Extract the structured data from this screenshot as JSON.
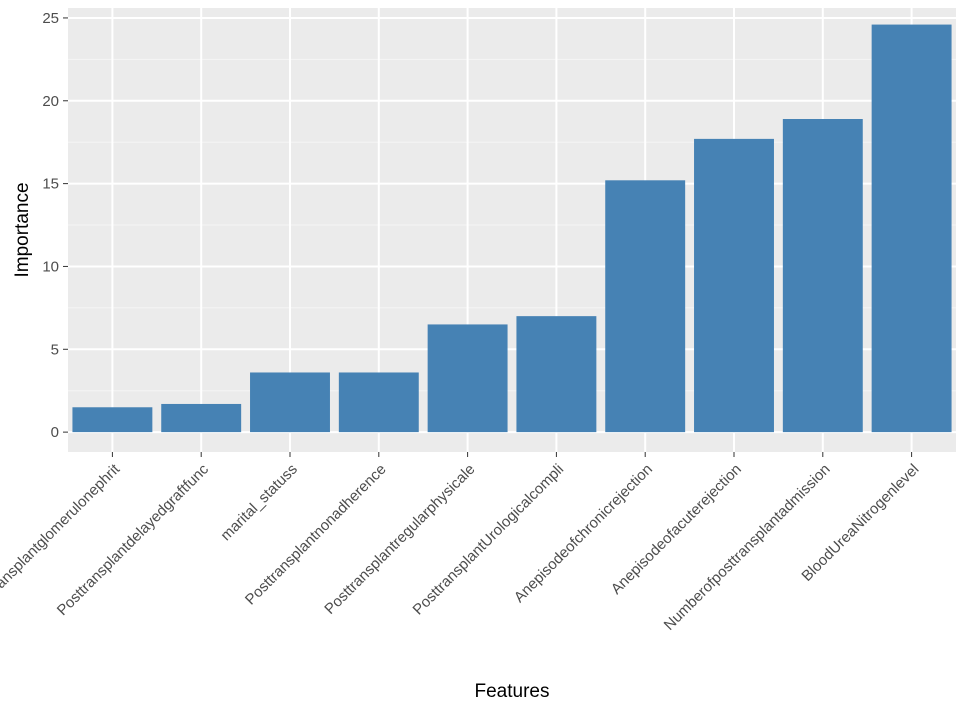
{
  "chart_data": {
    "type": "bar",
    "xlabel": "Features",
    "ylabel": "Importance",
    "ylim": [
      -1.2,
      25.6
    ],
    "yticks": [
      0,
      5,
      10,
      15,
      20,
      25
    ],
    "grid": true,
    "legend": "none",
    "categories": [
      "Posttransplantglomerulonephrit",
      "Posttransplantdelayedgraftfunc",
      "marital_statuss",
      "Posttransplantnonadherence",
      "Posttransplantregularphysicale",
      "PosttransplantUrologicalcompli",
      "Anepisodeofchronicrejection",
      "Anepisodeofacuterejection",
      "Numberofposttransplantadmission",
      "BloodUreaNitrogenlevel"
    ],
    "values": [
      1.5,
      1.7,
      3.6,
      3.6,
      6.5,
      7.0,
      15.2,
      17.7,
      18.9,
      24.6
    ],
    "colors": {
      "bar": "#4682b4",
      "panel": "#ebebeb",
      "grid_major": "#ffffff",
      "grid_minor": "#f5f5f5",
      "tick": "#4d4d4d",
      "tick_mark": "#333333",
      "title": "#000000"
    }
  }
}
